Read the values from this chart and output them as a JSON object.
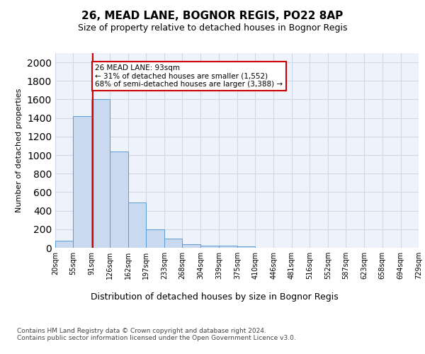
{
  "title1": "26, MEAD LANE, BOGNOR REGIS, PO22 8AP",
  "title2": "Size of property relative to detached houses in Bognor Regis",
  "xlabel": "Distribution of detached houses by size in Bognor Regis",
  "ylabel": "Number of detached properties",
  "footnote": "Contains HM Land Registry data © Crown copyright and database right 2024.\nContains public sector information licensed under the Open Government Licence v3.0.",
  "bar_left_edges": [
    20,
    55,
    91,
    126,
    162,
    197,
    233,
    268,
    304,
    339,
    375,
    410,
    446,
    481,
    516,
    552,
    587,
    623,
    658,
    694
  ],
  "bar_widths": [
    35,
    36,
    35,
    36,
    35,
    36,
    35,
    36,
    35,
    36,
    35,
    36,
    35,
    35,
    36,
    35,
    36,
    35,
    36,
    35
  ],
  "bar_heights": [
    80,
    1420,
    1600,
    1040,
    490,
    200,
    100,
    40,
    25,
    20,
    15,
    0,
    0,
    0,
    0,
    0,
    0,
    0,
    0,
    0
  ],
  "bar_color": "#c8d9f0",
  "bar_edge_color": "#5b9bd5",
  "grid_color": "#d0d8e8",
  "background_color": "#eef2fa",
  "red_line_x": 93,
  "red_line_color": "#cc0000",
  "annotation_text": "26 MEAD LANE: 93sqm\n← 31% of detached houses are smaller (1,552)\n68% of semi-detached houses are larger (3,388) →",
  "annotation_box_color": "#cc0000",
  "annotation_text_color": "#000000",
  "annotation_bg": "#ffffff",
  "tick_labels": [
    "20sqm",
    "55sqm",
    "91sqm",
    "126sqm",
    "162sqm",
    "197sqm",
    "233sqm",
    "268sqm",
    "304sqm",
    "339sqm",
    "375sqm",
    "410sqm",
    "446sqm",
    "481sqm",
    "516sqm",
    "552sqm",
    "587sqm",
    "623sqm",
    "658sqm",
    "694sqm",
    "729sqm"
  ],
  "tick_positions": [
    20,
    55,
    91,
    126,
    162,
    197,
    233,
    268,
    304,
    339,
    375,
    410,
    446,
    481,
    516,
    552,
    587,
    623,
    658,
    694,
    729
  ],
  "ylim": [
    0,
    2100
  ],
  "xlim": [
    20,
    729
  ],
  "title1_fontsize": 11,
  "title2_fontsize": 9,
  "ylabel_fontsize": 8,
  "xlabel_fontsize": 9,
  "tick_fontsize": 7,
  "footnote_fontsize": 6.5
}
